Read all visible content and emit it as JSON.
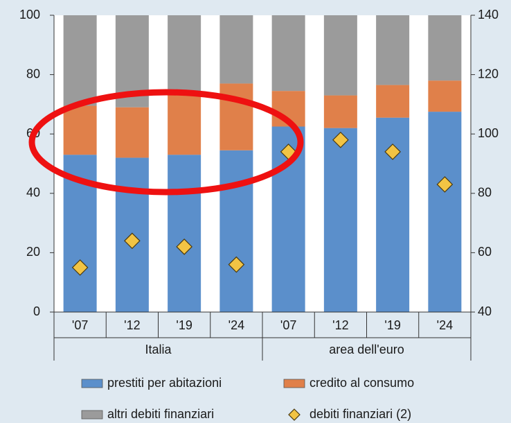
{
  "chart_data": {
    "type": "bar",
    "stacked": true,
    "groups": [
      {
        "name": "Italia",
        "categories": [
          "'07",
          "'12",
          "'19",
          "'24"
        ]
      },
      {
        "name": "area dell'euro",
        "categories": [
          "'07",
          "'12",
          "'19",
          "'24"
        ]
      }
    ],
    "series": [
      {
        "name": "prestiti per abitazioni",
        "color": "#5b8fcb",
        "values": [
          53,
          52,
          53,
          54.5,
          62.5,
          62,
          65.5,
          67.5
        ]
      },
      {
        "name": "credito al consumo",
        "color": "#e0804a",
        "values": [
          16.5,
          17,
          20.5,
          22.5,
          12,
          11,
          11,
          10.5
        ]
      },
      {
        "name": "altri debiti finanziari",
        "color": "#9b9b9b",
        "values": [
          30.5,
          31,
          26.5,
          23,
          25.5,
          27,
          23.5,
          22
        ]
      },
      {
        "name": "debiti finanziari (2)",
        "color": "#f2c444",
        "type": "scatter",
        "marker": "diamond",
        "axis": "y2",
        "values": [
          55,
          64,
          62,
          56,
          94,
          98,
          94,
          83
        ]
      }
    ],
    "ylim": [
      0,
      100
    ],
    "yticks": [
      0,
      20,
      40,
      60,
      80,
      100
    ],
    "y2lim": [
      40,
      140
    ],
    "y2ticks": [
      40,
      60,
      80,
      100,
      120,
      140
    ],
    "grid": false,
    "legend": "bottom"
  }
}
